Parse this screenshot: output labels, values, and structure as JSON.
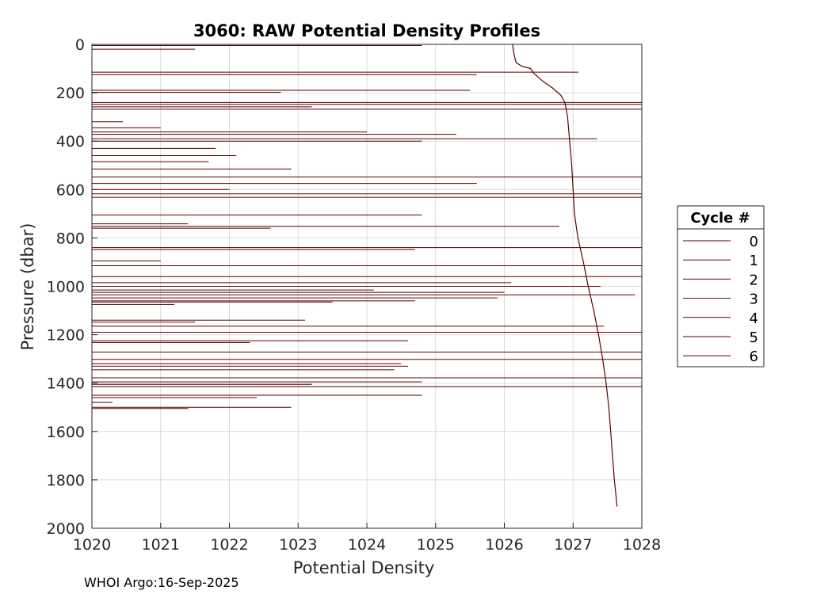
{
  "chart_data": {
    "type": "line",
    "title": "3060: RAW Potential Density Profiles",
    "xlabel": "Potential Density",
    "ylabel": "Pressure (dbar)",
    "xlim": [
      1020,
      1028
    ],
    "ylim": [
      0,
      2000
    ],
    "y_reversed": true,
    "grid": true,
    "xticks": [
      1020,
      1021,
      1022,
      1023,
      1024,
      1025,
      1026,
      1027,
      1028
    ],
    "yticks": [
      0,
      200,
      400,
      600,
      800,
      1000,
      1200,
      1400,
      1600,
      1800,
      2000
    ],
    "line_color": "#5a0000",
    "legend": {
      "title": "Cycle #",
      "placement": "right",
      "entries": [
        "0",
        "1",
        "2",
        "3",
        "4",
        "5",
        "6"
      ]
    },
    "series": [
      {
        "name": "profile",
        "points": [
          [
            1026.12,
            0
          ],
          [
            1026.14,
            40
          ],
          [
            1026.17,
            75
          ],
          [
            1026.25,
            90
          ],
          [
            1026.38,
            100
          ],
          [
            1026.43,
            120
          ],
          [
            1026.55,
            150
          ],
          [
            1026.7,
            180
          ],
          [
            1026.82,
            210
          ],
          [
            1026.88,
            240
          ],
          [
            1026.92,
            300
          ],
          [
            1026.95,
            400
          ],
          [
            1026.98,
            500
          ],
          [
            1027.0,
            600
          ],
          [
            1027.02,
            700
          ],
          [
            1027.07,
            800
          ],
          [
            1027.15,
            900
          ],
          [
            1027.22,
            1000
          ],
          [
            1027.3,
            1100
          ],
          [
            1027.37,
            1200
          ],
          [
            1027.43,
            1300
          ],
          [
            1027.48,
            1400
          ],
          [
            1027.52,
            1500
          ],
          [
            1027.56,
            1650
          ],
          [
            1027.6,
            1800
          ],
          [
            1027.64,
            1910
          ]
        ]
      }
    ],
    "spikes": [
      {
        "p": 5,
        "x": 1024.8
      },
      {
        "p": 20,
        "x": 1021.5
      },
      {
        "p": 115,
        "x": 1027.08
      },
      {
        "p": 125,
        "x": 1025.6
      },
      {
        "p": 190,
        "x": 1025.5
      },
      {
        "p": 198,
        "x": 1022.75
      },
      {
        "p": 240,
        "x": 1028
      },
      {
        "p": 248,
        "x": 1028
      },
      {
        "p": 258,
        "x": 1023.2
      },
      {
        "p": 268,
        "x": 1028
      },
      {
        "p": 320,
        "x": 1020.45
      },
      {
        "p": 345,
        "x": 1021.0
      },
      {
        "p": 362,
        "x": 1024.0
      },
      {
        "p": 372,
        "x": 1025.3
      },
      {
        "p": 390,
        "x": 1027.35
      },
      {
        "p": 400,
        "x": 1024.8
      },
      {
        "p": 430,
        "x": 1021.8
      },
      {
        "p": 460,
        "x": 1022.1
      },
      {
        "p": 485,
        "x": 1021.7
      },
      {
        "p": 515,
        "x": 1022.9
      },
      {
        "p": 548,
        "x": 1028
      },
      {
        "p": 575,
        "x": 1025.6
      },
      {
        "p": 600,
        "x": 1022.0
      },
      {
        "p": 618,
        "x": 1028
      },
      {
        "p": 632,
        "x": 1028
      },
      {
        "p": 705,
        "x": 1024.8
      },
      {
        "p": 742,
        "x": 1021.4
      },
      {
        "p": 752,
        "x": 1026.8
      },
      {
        "p": 760,
        "x": 1022.6
      },
      {
        "p": 840,
        "x": 1028
      },
      {
        "p": 848,
        "x": 1024.7
      },
      {
        "p": 895,
        "x": 1021.0
      },
      {
        "p": 915,
        "x": 1028
      },
      {
        "p": 960,
        "x": 1028
      },
      {
        "p": 985,
        "x": 1026.1
      },
      {
        "p": 1000,
        "x": 1027.4
      },
      {
        "p": 1015,
        "x": 1024.1
      },
      {
        "p": 1025,
        "x": 1026.0
      },
      {
        "p": 1035,
        "x": 1027.9
      },
      {
        "p": 1048,
        "x": 1025.9
      },
      {
        "p": 1060,
        "x": 1024.7
      },
      {
        "p": 1065,
        "x": 1023.5
      },
      {
        "p": 1075,
        "x": 1021.2
      },
      {
        "p": 1140,
        "x": 1023.1
      },
      {
        "p": 1148,
        "x": 1021.5
      },
      {
        "p": 1165,
        "x": 1027.45
      },
      {
        "p": 1190,
        "x": 1028
      },
      {
        "p": 1225,
        "x": 1024.6
      },
      {
        "p": 1232,
        "x": 1022.3
      },
      {
        "p": 1272,
        "x": 1028
      },
      {
        "p": 1302,
        "x": 1028
      },
      {
        "p": 1320,
        "x": 1024.5
      },
      {
        "p": 1330,
        "x": 1024.6
      },
      {
        "p": 1345,
        "x": 1024.4
      },
      {
        "p": 1378,
        "x": 1028
      },
      {
        "p": 1395,
        "x": 1024.8
      },
      {
        "p": 1405,
        "x": 1023.2
      },
      {
        "p": 1415,
        "x": 1028
      },
      {
        "p": 1450,
        "x": 1024.8
      },
      {
        "p": 1460,
        "x": 1022.4
      },
      {
        "p": 1480,
        "x": 1020.3
      },
      {
        "p": 1500,
        "x": 1022.9
      },
      {
        "p": 1505,
        "x": 1021.4
      }
    ]
  },
  "footer": "WHOI Argo:16-Sep-2025"
}
